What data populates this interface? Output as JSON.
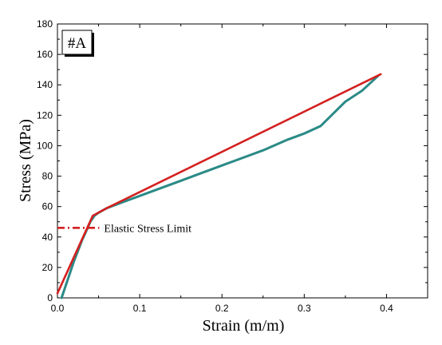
{
  "chart_data": {
    "type": "line",
    "panel_label": "#A",
    "xlabel": "Strain (m/m)",
    "ylabel": "Stress (MPa)",
    "xlim": [
      0,
      0.45
    ],
    "ylim": [
      0,
      180
    ],
    "x_ticks": [
      "0.0",
      "0.1",
      "0.2",
      "0.3",
      "0.4"
    ],
    "x_tick_values": [
      0,
      0.1,
      0.2,
      0.3,
      0.4
    ],
    "y_ticks": [
      "0",
      "20",
      "40",
      "60",
      "80",
      "100",
      "120",
      "140",
      "160",
      "180"
    ],
    "y_tick_values": [
      0,
      20,
      40,
      60,
      80,
      100,
      120,
      140,
      160,
      180
    ],
    "grid": false,
    "series": [
      {
        "role": "experimental",
        "color": "#2a8a86",
        "x": [
          0.005,
          0.01,
          0.015,
          0.02,
          0.025,
          0.03,
          0.035,
          0.04,
          0.045,
          0.05,
          0.06,
          0.08,
          0.1,
          0.12,
          0.15,
          0.18,
          0.2,
          0.22,
          0.25,
          0.28,
          0.3,
          0.32,
          0.35,
          0.37,
          0.39
        ],
        "y": [
          0,
          8,
          16,
          24,
          31,
          38,
          44,
          50,
          54,
          56,
          59,
          63,
          67,
          71,
          77,
          83,
          87,
          91,
          97,
          104,
          108,
          113,
          129,
          136,
          146
        ]
      },
      {
        "role": "fit",
        "color": "#d42020",
        "x": [
          0.0,
          0.043,
          0.06,
          0.393
        ],
        "y": [
          3,
          54,
          59,
          147
        ]
      }
    ],
    "annotations": [
      {
        "text": "Elastic Stress Limit",
        "x": 0.045,
        "y": 46,
        "line_start_x": 0.0,
        "line_style": "dash-dot",
        "color": "#d42020"
      }
    ]
  }
}
